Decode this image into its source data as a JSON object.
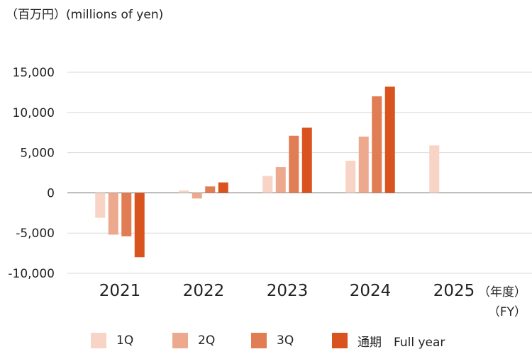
{
  "unit_label": "（百万円）(millions of yen)",
  "fy_label_1": "（年度）",
  "fy_label_2": "（FY）",
  "colors": {
    "1Q": "#f7d4c6",
    "2Q": "#eca98e",
    "3Q": "#e07d54",
    "full": "#d9531e",
    "grid": "#d9d9d9",
    "axis": "#888888"
  },
  "chart_data": {
    "type": "bar",
    "categories": [
      "2021",
      "2022",
      "2023",
      "2024",
      "2025"
    ],
    "series": [
      {
        "name": "1Q",
        "values": [
          -3100,
          300,
          2100,
          4000,
          5900
        ]
      },
      {
        "name": "2Q",
        "values": [
          -5200,
          -700,
          3200,
          7000,
          null
        ]
      },
      {
        "name": "3Q",
        "values": [
          -5400,
          800,
          7100,
          12000,
          null
        ]
      },
      {
        "name": "通期　Full year",
        "values": [
          -8000,
          1300,
          8100,
          13200,
          null
        ]
      }
    ],
    "y_ticks": [
      "15,000",
      "10,000",
      "5,000",
      "0",
      "-5,000",
      "-10,000"
    ],
    "y_tick_values": [
      15000,
      10000,
      5000,
      0,
      -5000,
      -10000
    ],
    "ylim": [
      -10000,
      15000
    ],
    "grid": true,
    "legend_position": "bottom"
  }
}
